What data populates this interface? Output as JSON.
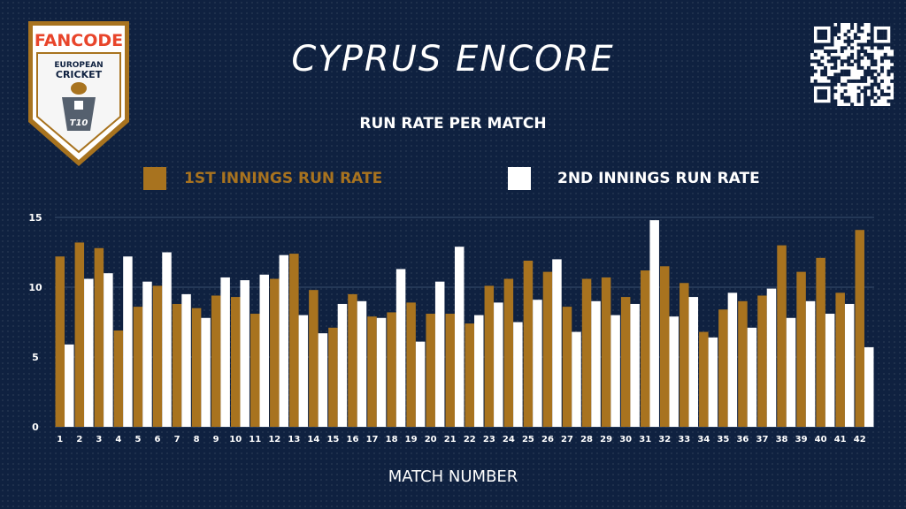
{
  "header": {
    "title": "CYPRUS ENCORE",
    "subtitle": "RUN RATE PER MATCH",
    "logo": {
      "brand": "FANCODE",
      "line1": "EUROPEAN",
      "line2": "CRICKET",
      "badge": "T10"
    }
  },
  "colors": {
    "background": "#0f2140",
    "series1": "#a8731f",
    "series2": "#ffffff",
    "text": "#ffffff",
    "grid": "#3a4e6e"
  },
  "chart_data": {
    "type": "bar",
    "title": "RUN RATE PER MATCH",
    "xlabel": "MATCH NUMBER",
    "ylabel": "",
    "ylim": [
      0,
      15
    ],
    "yticks": [
      0,
      5,
      10,
      15
    ],
    "grid": true,
    "legend": "top",
    "categories": [
      "1",
      "2",
      "3",
      "4",
      "5",
      "6",
      "7",
      "8",
      "9",
      "10",
      "11",
      "12",
      "13",
      "14",
      "15",
      "16",
      "17",
      "18",
      "19",
      "20",
      "21",
      "22",
      "23",
      "24",
      "25",
      "26",
      "27",
      "28",
      "29",
      "30",
      "31",
      "32",
      "33",
      "34",
      "35",
      "36",
      "37",
      "38",
      "39",
      "40",
      "41",
      "42"
    ],
    "series": [
      {
        "name": "1ST INNINGS RUN RATE",
        "color": "#a8731f",
        "values": [
          12.2,
          13.2,
          12.8,
          6.9,
          8.6,
          10.1,
          8.8,
          8.5,
          9.4,
          9.3,
          8.1,
          10.6,
          12.4,
          9.8,
          7.1,
          9.5,
          7.9,
          8.2,
          8.9,
          8.1,
          8.1,
          7.4,
          10.1,
          10.6,
          11.9,
          11.1,
          8.6,
          10.6,
          10.7,
          9.3,
          11.2,
          11.5,
          10.3,
          6.8,
          8.4,
          9.0,
          9.4,
          13.0,
          11.1,
          12.1,
          9.6,
          14.1
        ]
      },
      {
        "name": "2ND INNINGS RUN RATE",
        "color": "#ffffff",
        "values": [
          5.9,
          10.6,
          11.0,
          12.2,
          10.4,
          12.5,
          9.5,
          7.8,
          10.7,
          10.5,
          10.9,
          12.3,
          8.0,
          6.7,
          8.8,
          9.0,
          7.8,
          11.3,
          6.1,
          10.4,
          12.9,
          8.0,
          8.9,
          7.5,
          9.1,
          12.0,
          6.8,
          9.0,
          8.0,
          8.8,
          14.8,
          7.9,
          9.3,
          6.4,
          9.6,
          7.1,
          9.9,
          7.8,
          9.0,
          8.1,
          8.8,
          5.7
        ]
      }
    ]
  },
  "qr": {
    "icon": "qr-code-icon"
  }
}
